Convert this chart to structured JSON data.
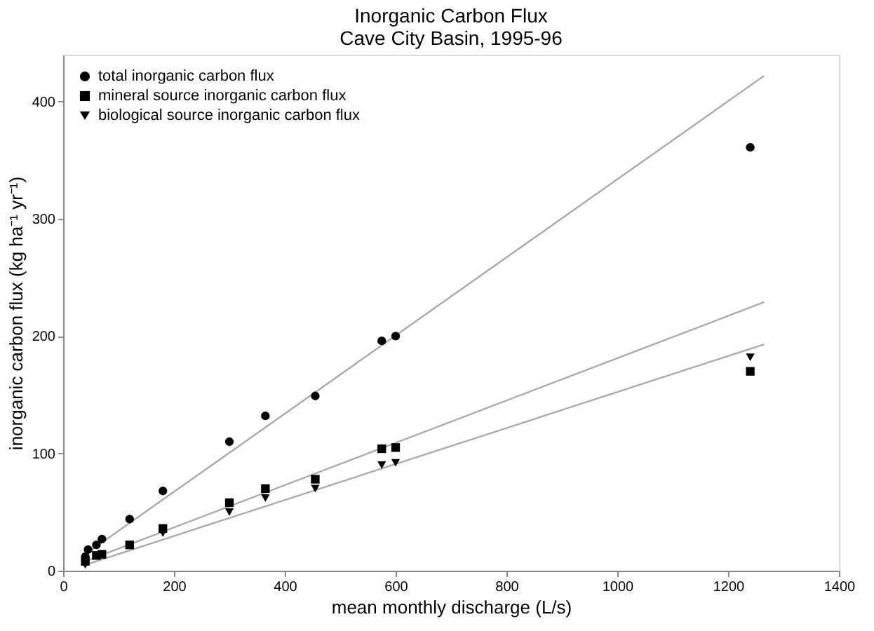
{
  "chart_data": {
    "type": "scatter",
    "title": "Inorganic Carbon Flux",
    "subtitle": "Cave City Basin, 1995-96",
    "xlabel": "mean monthly discharge (L/s)",
    "ylabel": "inorganic carbon flux (kg ha⁻¹ yr⁻¹)",
    "xlim": [
      0,
      1400
    ],
    "ylim": [
      0,
      440
    ],
    "xticks": [
      0,
      200,
      400,
      600,
      800,
      1000,
      1200,
      1400
    ],
    "yticks": [
      0,
      100,
      200,
      300,
      400
    ],
    "grid": false,
    "legend": "top left",
    "series": [
      {
        "name": "total inorganic carbon flux",
        "color": "#000000",
        "marker": "circle",
        "x": [
          40,
          45,
          60,
          70,
          120,
          180,
          300,
          365,
          455,
          575,
          600,
          1240
        ],
        "values": [
          12,
          18,
          22,
          27,
          44,
          68,
          110,
          132,
          149,
          196,
          200,
          361
        ]
      },
      {
        "name": "mineral source inorganic carbon flux",
        "color": "#000000",
        "marker": "square",
        "x": [
          40,
          45,
          60,
          70,
          120,
          180,
          300,
          365,
          455,
          575,
          600,
          1240
        ],
        "values": [
          8,
          null,
          13,
          14,
          22,
          36,
          58,
          70,
          78,
          104,
          105,
          170
        ]
      },
      {
        "name": "biological source inorganic carbon flux",
        "color": "#000000",
        "marker": "triangle",
        "x": [
          40,
          45,
          60,
          70,
          120,
          180,
          300,
          365,
          455,
          575,
          600,
          1240
        ],
        "values": [
          5,
          null,
          null,
          null,
          null,
          32,
          50,
          62,
          70,
          90,
          92,
          182
        ]
      },
      {
        "type": "line",
        "color": "#aaaaaa",
        "x": [
          40,
          1265
        ],
        "values": [
          14,
          422
        ]
      },
      {
        "type": "line",
        "color": "#aaaaaa",
        "x": [
          40,
          1265
        ],
        "values": [
          8,
          229
        ]
      },
      {
        "type": "line",
        "color": "#aaaaaa",
        "x": [
          40,
          1265
        ],
        "values": [
          5,
          193
        ]
      }
    ]
  }
}
